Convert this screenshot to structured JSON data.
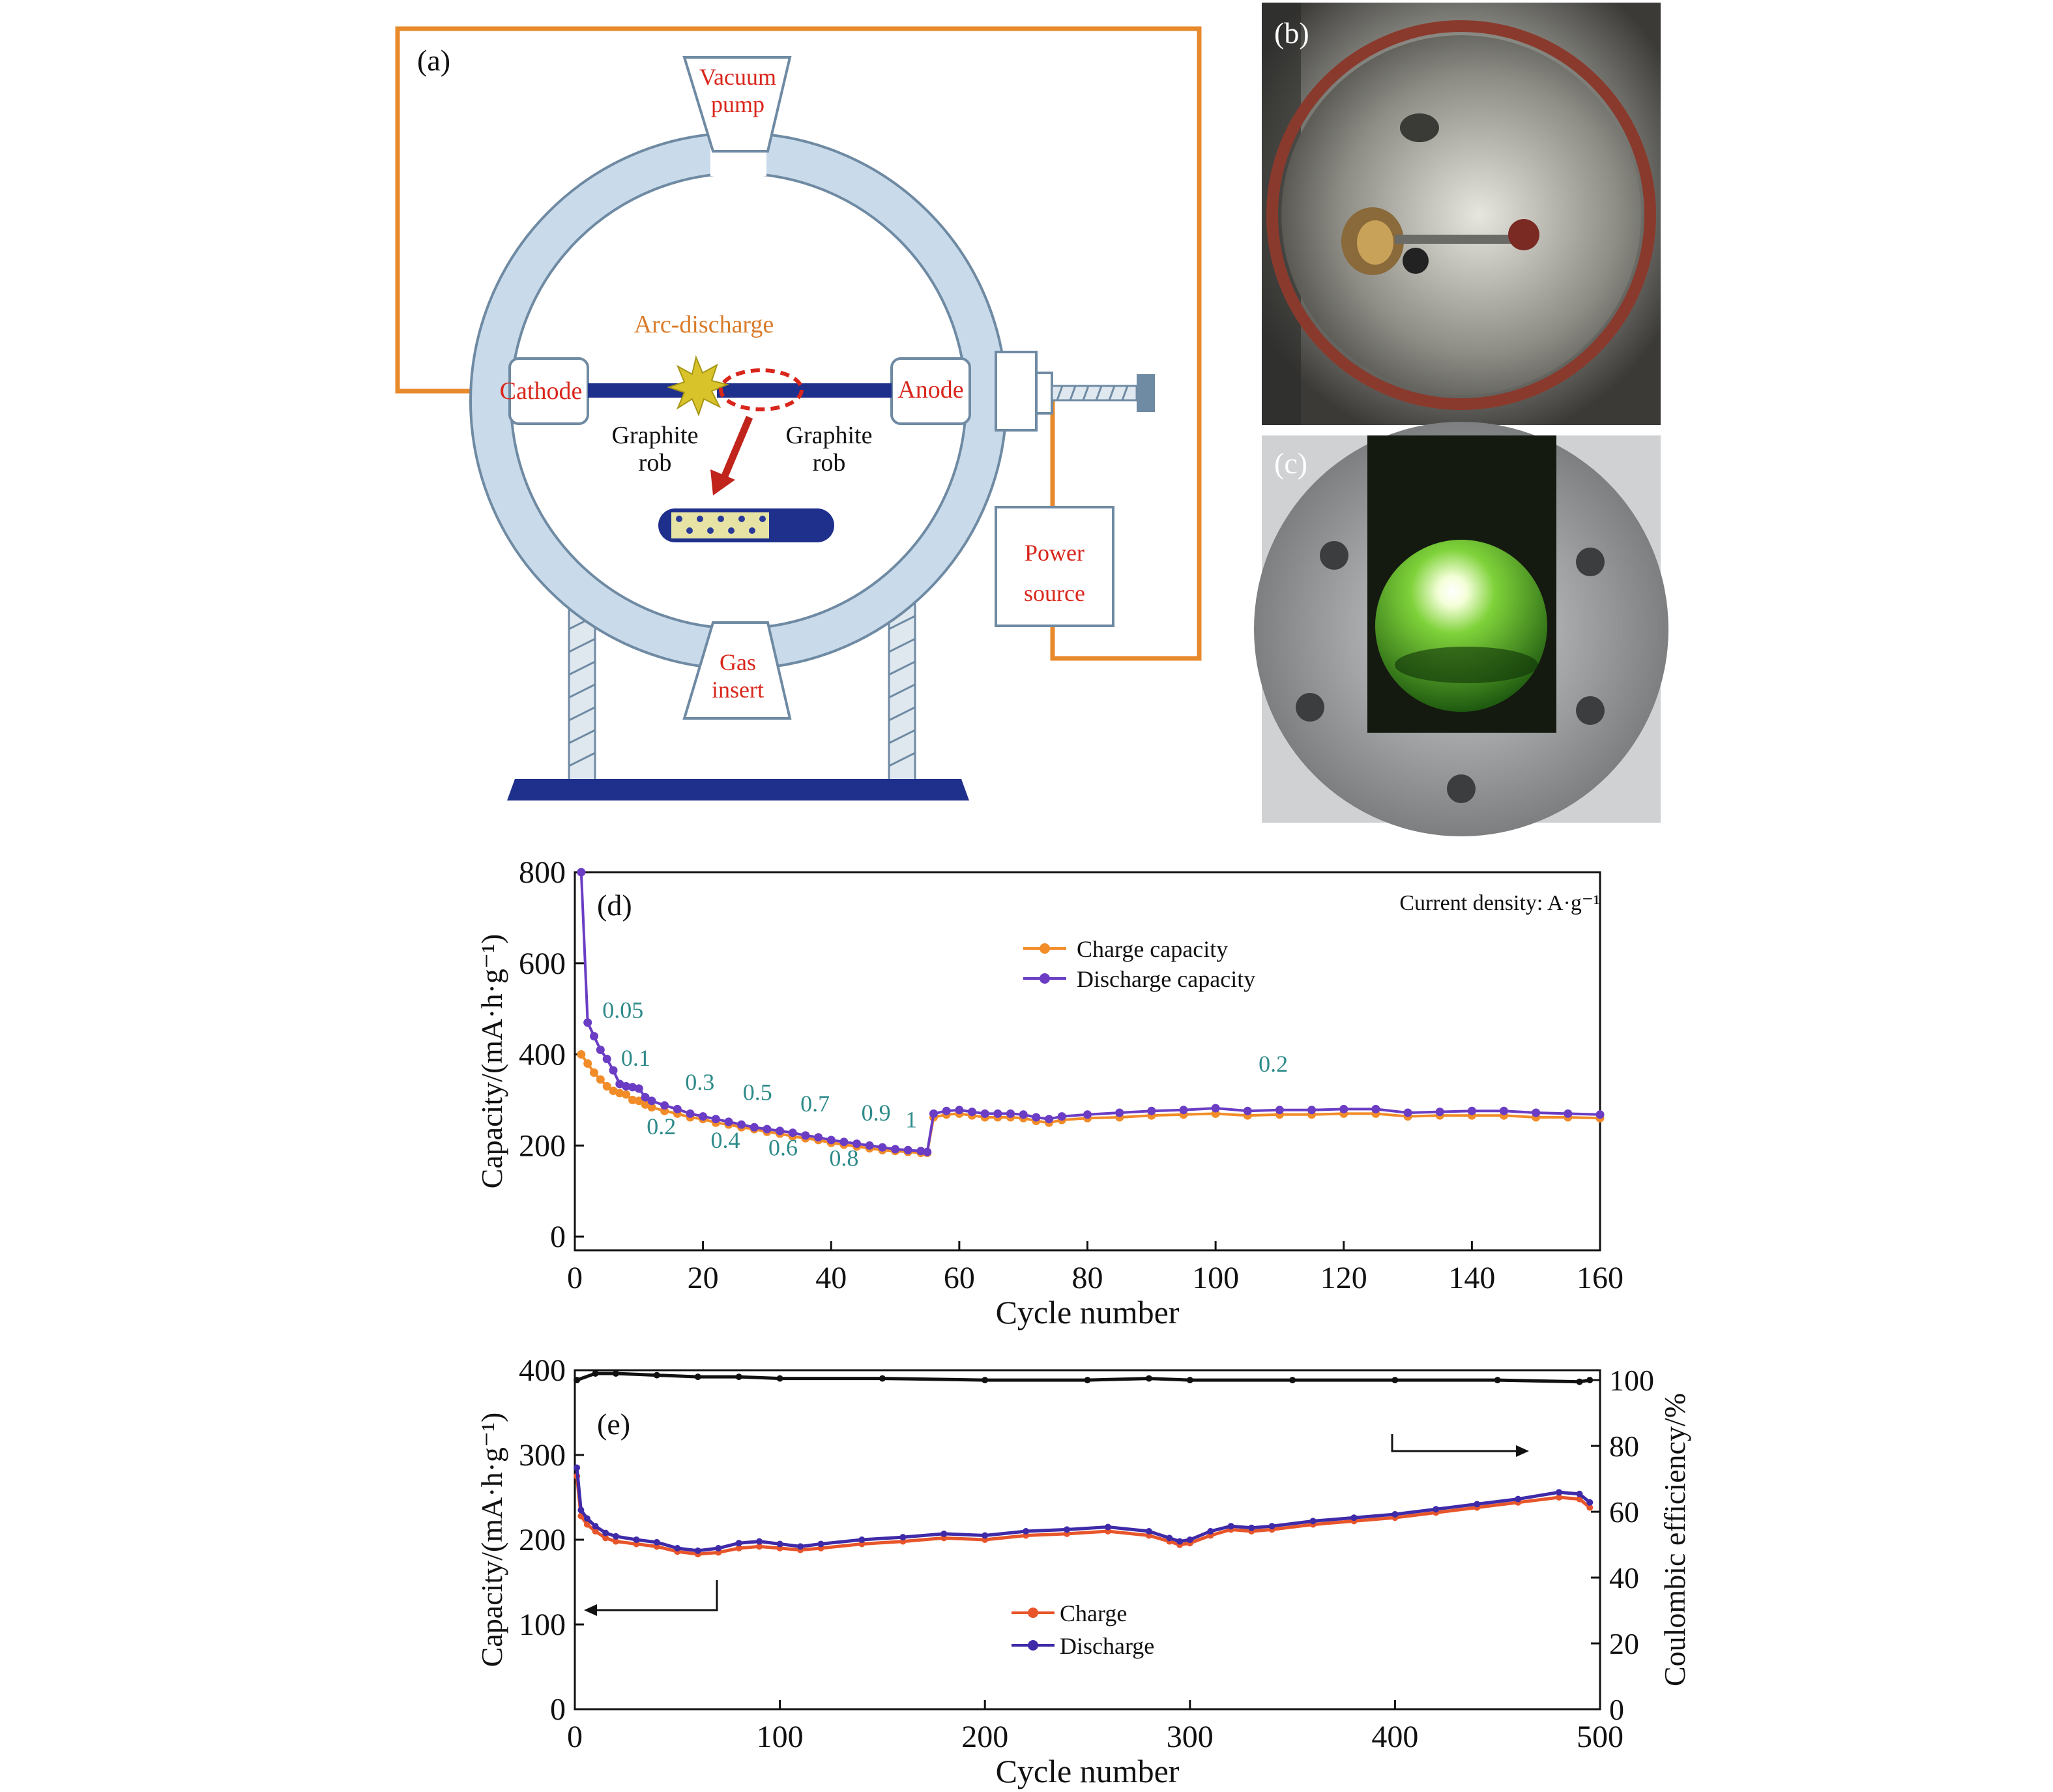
{
  "panel_a": {
    "label": "(a)",
    "vacuum_pump": [
      "Vacuum",
      "pump"
    ],
    "gas_insert": [
      "Gas",
      "insert"
    ],
    "arc_discharge": "Arc-discharge",
    "cathode": "Cathode",
    "anode": "Anode",
    "graphite_left": [
      "Graphite",
      "rob"
    ],
    "graphite_right": [
      "Graphite",
      "rob"
    ],
    "power_source": [
      "Power",
      "source"
    ],
    "colors": {
      "wire": "#e8892c",
      "ring": "#c9dbea",
      "ring_edge": "#6f8aa3",
      "rod": "#1f2f8c",
      "label_red": "#d9261c",
      "label_orange": "#d97b2a"
    }
  },
  "panel_b": {
    "label": "(b)"
  },
  "panel_c": {
    "label": "(c)"
  },
  "panel_d": {
    "label": "(d)",
    "annotation": "Current density: A·g⁻¹"
  },
  "panel_e": {
    "label": "(e)"
  },
  "chart_data": [
    {
      "id": "d",
      "type": "line",
      "title": "",
      "xlabel": "Cycle number",
      "ylabel": "Capacity/(mA·h·g⁻¹)",
      "xlim": [
        0,
        160
      ],
      "ylim": [
        -30,
        800
      ],
      "xticks": [
        0,
        20,
        40,
        60,
        80,
        100,
        120,
        140,
        160
      ],
      "yticks": [
        0,
        200,
        400,
        600,
        800
      ],
      "legend_position": "top-center",
      "series": [
        {
          "name": "Charge capacity",
          "color": "#f28c28",
          "x": [
            1,
            2,
            3,
            4,
            5,
            6,
            7,
            8,
            9,
            10,
            11,
            12,
            14,
            16,
            18,
            20,
            22,
            24,
            26,
            28,
            30,
            32,
            34,
            36,
            38,
            40,
            42,
            44,
            46,
            48,
            50,
            52,
            54,
            55,
            56,
            58,
            60,
            62,
            64,
            66,
            68,
            70,
            72,
            74,
            76,
            80,
            85,
            90,
            95,
            100,
            105,
            110,
            115,
            120,
            125,
            130,
            135,
            140,
            145,
            150,
            155,
            160
          ],
          "y": [
            400,
            380,
            360,
            345,
            330,
            320,
            315,
            312,
            300,
            298,
            290,
            284,
            276,
            270,
            262,
            258,
            250,
            246,
            240,
            236,
            230,
            226,
            220,
            216,
            212,
            206,
            202,
            198,
            194,
            190,
            188,
            186,
            184,
            184,
            262,
            268,
            270,
            266,
            262,
            262,
            262,
            260,
            254,
            250,
            256,
            260,
            262,
            266,
            268,
            270,
            266,
            268,
            268,
            270,
            270,
            264,
            266,
            266,
            266,
            262,
            262,
            260
          ]
        },
        {
          "name": "Discharge capacity",
          "color": "#6a3dc4",
          "x": [
            1,
            2,
            3,
            4,
            5,
            6,
            7,
            8,
            9,
            10,
            11,
            12,
            14,
            16,
            18,
            20,
            22,
            24,
            26,
            28,
            30,
            32,
            34,
            36,
            38,
            40,
            42,
            44,
            46,
            48,
            50,
            52,
            54,
            55,
            56,
            58,
            60,
            62,
            64,
            66,
            68,
            70,
            72,
            74,
            76,
            80,
            85,
            90,
            95,
            100,
            105,
            110,
            115,
            120,
            125,
            130,
            135,
            140,
            145,
            150,
            155,
            160
          ],
          "y": [
            800,
            470,
            440,
            410,
            390,
            365,
            335,
            330,
            328,
            325,
            306,
            298,
            288,
            280,
            270,
            264,
            258,
            252,
            246,
            240,
            236,
            232,
            228,
            222,
            218,
            212,
            208,
            204,
            200,
            196,
            192,
            190,
            188,
            186,
            270,
            276,
            278,
            274,
            270,
            270,
            270,
            268,
            262,
            258,
            264,
            268,
            272,
            276,
            278,
            282,
            276,
            278,
            278,
            280,
            280,
            272,
            274,
            276,
            276,
            272,
            270,
            268
          ]
        }
      ],
      "annotations": [
        {
          "text": "0.05",
          "x": 7.5,
          "y": 480,
          "anchor": "middle"
        },
        {
          "text": "0.1",
          "x": 9.5,
          "y": 375,
          "anchor": "middle"
        },
        {
          "text": "0.2",
          "x": 13.5,
          "y": 225,
          "anchor": "middle"
        },
        {
          "text": "0.3",
          "x": 19.5,
          "y": 322,
          "anchor": "middle"
        },
        {
          "text": "0.4",
          "x": 23.5,
          "y": 195,
          "anchor": "middle"
        },
        {
          "text": "0.5",
          "x": 28.5,
          "y": 300,
          "anchor": "middle"
        },
        {
          "text": "0.6",
          "x": 32.5,
          "y": 178,
          "anchor": "middle"
        },
        {
          "text": "0.7",
          "x": 37.5,
          "y": 275,
          "anchor": "middle"
        },
        {
          "text": "0.8",
          "x": 42,
          "y": 155,
          "anchor": "middle"
        },
        {
          "text": "0.9",
          "x": 47,
          "y": 255,
          "anchor": "middle"
        },
        {
          "text": "1",
          "x": 52.5,
          "y": 240,
          "anchor": "middle"
        },
        {
          "text": "0.2",
          "x": 109,
          "y": 362,
          "anchor": "middle"
        }
      ]
    },
    {
      "id": "e",
      "type": "line",
      "title": "",
      "xlabel": "Cycle number",
      "ylabel": "Capacity/(mA·h·g⁻¹)",
      "y2label": "Coulombic efficiency/%",
      "xlim": [
        0,
        500
      ],
      "ylim": [
        0,
        400
      ],
      "y2lim": [
        0,
        103
      ],
      "xticks": [
        0,
        100,
        200,
        300,
        400,
        500
      ],
      "yticks": [
        0,
        100,
        200,
        300,
        400
      ],
      "y2ticks": [
        0,
        20,
        40,
        60,
        80,
        100
      ],
      "legend_position": "bottom-center",
      "series": [
        {
          "name": "Charge",
          "color": "#e8552a",
          "axis": "left",
          "x": [
            1,
            3,
            6,
            10,
            15,
            20,
            30,
            40,
            50,
            60,
            70,
            80,
            90,
            100,
            110,
            120,
            140,
            160,
            180,
            200,
            220,
            240,
            260,
            280,
            290,
            295,
            300,
            310,
            320,
            330,
            340,
            360,
            380,
            400,
            420,
            440,
            460,
            480,
            490,
            495
          ],
          "y": [
            275,
            228,
            218,
            210,
            202,
            198,
            195,
            192,
            186,
            183,
            185,
            190,
            192,
            190,
            188,
            190,
            195,
            198,
            202,
            200,
            205,
            207,
            210,
            205,
            198,
            194,
            196,
            205,
            212,
            210,
            212,
            218,
            222,
            226,
            232,
            238,
            244,
            250,
            248,
            238
          ]
        },
        {
          "name": "Discharge",
          "color": "#3f2aa8",
          "axis": "left",
          "x": [
            1,
            3,
            6,
            10,
            15,
            20,
            30,
            40,
            50,
            60,
            70,
            80,
            90,
            100,
            110,
            120,
            140,
            160,
            180,
            200,
            220,
            240,
            260,
            280,
            290,
            295,
            300,
            310,
            320,
            330,
            340,
            360,
            380,
            400,
            420,
            440,
            460,
            480,
            490,
            495
          ],
          "y": [
            285,
            235,
            225,
            216,
            208,
            204,
            200,
            197,
            190,
            187,
            190,
            196,
            198,
            195,
            192,
            195,
            200,
            203,
            207,
            205,
            210,
            212,
            215,
            210,
            202,
            198,
            200,
            210,
            216,
            214,
            216,
            222,
            226,
            230,
            236,
            242,
            248,
            256,
            254,
            244
          ]
        },
        {
          "name": "",
          "color": "#111111",
          "axis": "right",
          "x": [
            1,
            10,
            20,
            40,
            60,
            80,
            100,
            150,
            200,
            250,
            280,
            300,
            350,
            400,
            450,
            490,
            495
          ],
          "y": [
            100,
            102,
            102,
            101.5,
            101,
            101,
            100.5,
            100.5,
            100,
            100,
            100.5,
            100,
            100,
            100,
            100,
            99.5,
            100
          ]
        }
      ]
    }
  ]
}
